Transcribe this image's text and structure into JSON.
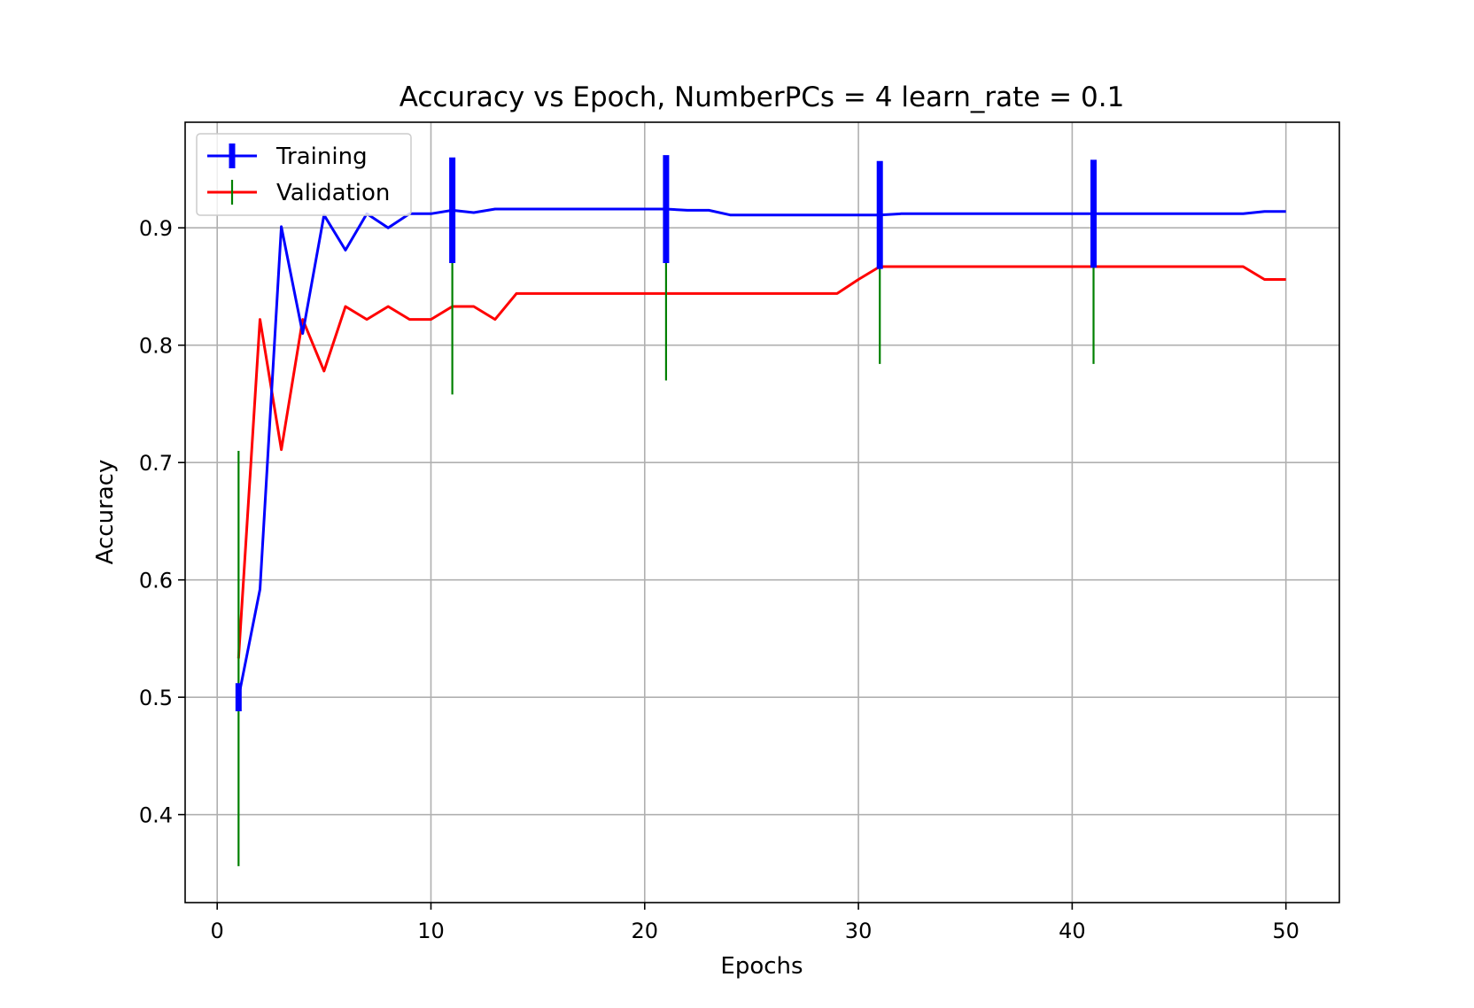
{
  "chart_data": {
    "type": "line",
    "title": "Accuracy vs Epoch, NumberPCs = 4 learn_rate = 0.1",
    "xlabel": "Epochs",
    "ylabel": "Accuracy",
    "xlim": [
      -1.5,
      52.5
    ],
    "ylim": [
      0.325,
      0.99
    ],
    "x_ticks": [
      0,
      10,
      20,
      30,
      40,
      50
    ],
    "y_ticks": [
      0.4,
      0.5,
      0.6,
      0.7,
      0.8,
      0.9
    ],
    "grid": true,
    "legend_position": "upper-left",
    "series": [
      {
        "name": "Training",
        "color": "#0000ff",
        "errorbar_color": "#0000ff",
        "x": [
          1,
          2,
          3,
          4,
          5,
          6,
          7,
          8,
          9,
          10,
          11,
          12,
          13,
          14,
          15,
          16,
          17,
          18,
          19,
          20,
          21,
          22,
          23,
          24,
          25,
          26,
          27,
          28,
          29,
          30,
          31,
          32,
          33,
          34,
          35,
          36,
          37,
          38,
          39,
          40,
          41,
          42,
          43,
          44,
          45,
          46,
          47,
          48,
          49,
          50
        ],
        "y": [
          0.5,
          0.592,
          0.901,
          0.81,
          0.911,
          0.881,
          0.912,
          0.9,
          0.912,
          0.912,
          0.915,
          0.913,
          0.916,
          0.916,
          0.916,
          0.916,
          0.916,
          0.916,
          0.916,
          0.916,
          0.916,
          0.915,
          0.915,
          0.911,
          0.911,
          0.911,
          0.911,
          0.911,
          0.911,
          0.911,
          0.911,
          0.912,
          0.912,
          0.912,
          0.912,
          0.912,
          0.912,
          0.912,
          0.912,
          0.912,
          0.912,
          0.912,
          0.912,
          0.912,
          0.912,
          0.912,
          0.912,
          0.912,
          0.914,
          0.914
        ],
        "errorbars": [
          {
            "x": 1,
            "y": 0.5,
            "err": 0.012
          },
          {
            "x": 11,
            "y": 0.915,
            "err": 0.045
          },
          {
            "x": 21,
            "y": 0.916,
            "err": 0.046
          },
          {
            "x": 31,
            "y": 0.911,
            "err": 0.046
          },
          {
            "x": 41,
            "y": 0.912,
            "err": 0.046
          }
        ]
      },
      {
        "name": "Validation",
        "color": "#ff0000",
        "errorbar_color": "#008000",
        "x": [
          1,
          2,
          3,
          4,
          5,
          6,
          7,
          8,
          9,
          10,
          11,
          12,
          13,
          14,
          15,
          16,
          17,
          18,
          19,
          20,
          21,
          22,
          23,
          24,
          25,
          26,
          27,
          28,
          29,
          30,
          31,
          32,
          33,
          34,
          35,
          36,
          37,
          38,
          39,
          40,
          41,
          42,
          43,
          44,
          45,
          46,
          47,
          48,
          49,
          50
        ],
        "y": [
          0.533,
          0.822,
          0.711,
          0.822,
          0.778,
          0.833,
          0.822,
          0.833,
          0.822,
          0.822,
          0.833,
          0.833,
          0.822,
          0.844,
          0.844,
          0.844,
          0.844,
          0.844,
          0.844,
          0.844,
          0.844,
          0.844,
          0.844,
          0.844,
          0.844,
          0.844,
          0.844,
          0.844,
          0.844,
          0.856,
          0.867,
          0.867,
          0.867,
          0.867,
          0.867,
          0.867,
          0.867,
          0.867,
          0.867,
          0.867,
          0.867,
          0.867,
          0.867,
          0.867,
          0.867,
          0.867,
          0.867,
          0.867,
          0.856,
          0.856
        ],
        "errorbars": [
          {
            "x": 1,
            "y": 0.533,
            "err": 0.177
          },
          {
            "x": 11,
            "y": 0.833,
            "err": 0.075
          },
          {
            "x": 21,
            "y": 0.844,
            "err": 0.074
          },
          {
            "x": 31,
            "y": 0.867,
            "err": 0.083
          },
          {
            "x": 41,
            "y": 0.867,
            "err": 0.083
          }
        ]
      }
    ]
  }
}
